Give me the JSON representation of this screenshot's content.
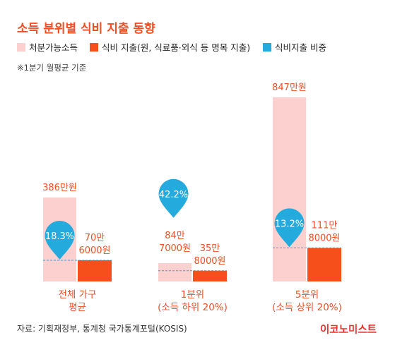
{
  "title": "소득 분위별 식비 지출 동향",
  "note": "※1분기 월평균 기준",
  "source": "자료: 기획재정부, 통계청 국가통계포털(KOSIS)",
  "brand": "이코노미스트",
  "colors": {
    "title": "#f04e23",
    "income": "#fdd0d0",
    "food": "#f74f1c",
    "ratio": "#24aadc",
    "label": "#f04e23"
  },
  "chart_data": {
    "type": "bar",
    "title": "소득 분위별 식비 지출 동향",
    "categories": [
      "전체 가구 평균",
      "1분위 (소득 하위 20%)",
      "5분위 (소득 상위 20%)"
    ],
    "category_label_lines": [
      [
        "전체 가구",
        "평균"
      ],
      [
        "1분위",
        "(소득 하위 20%)"
      ],
      [
        "5분위",
        "(소득 상위 20%)"
      ]
    ],
    "series": [
      {
        "name": "처분가능소득",
        "values": [
          3860000,
          847000,
          8470000
        ],
        "labels": [
          [
            "386만원"
          ],
          [
            "84만",
            "7000원"
          ],
          [
            "847만원"
          ]
        ]
      },
      {
        "name": "식비 지출(원, 식료품·외식 등 명목 지출)",
        "values": [
          706000,
          358000,
          1118000
        ],
        "labels": [
          [
            "70만",
            "6000원"
          ],
          [
            "35만",
            "8000원"
          ],
          [
            "111만",
            "8000원"
          ]
        ]
      },
      {
        "name": "식비지출 비중",
        "values": [
          18.3,
          42.2,
          13.2
        ],
        "labels": [
          "18.3%",
          "42.2%",
          "13.2%"
        ]
      }
    ],
    "legend_position": "top-left",
    "grid": false
  }
}
